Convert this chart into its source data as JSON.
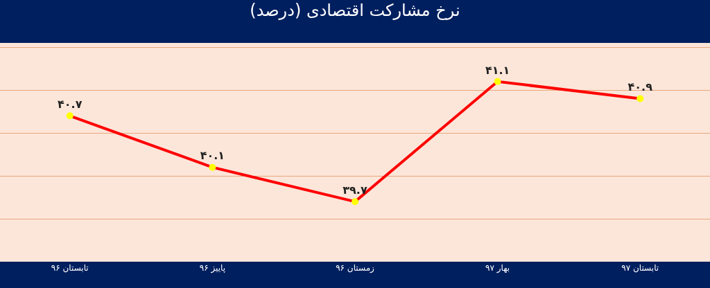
{
  "chart_data": {
    "type": "line",
    "title": "نرخ مشارکت اقتصادی (درصد)",
    "categories": [
      "تابستان ۹۶",
      "پاییز ۹۶",
      "زمستان ۹۶",
      "بهار ۹۷",
      "تابستان ۹۷"
    ],
    "series": [
      {
        "color": "#ff0000",
        "values": [
          40.7,
          40.1,
          39.7,
          41.1,
          40.9
        ],
        "value_labels": [
          "۴۰.۷",
          "۴۰.۱",
          "۳۹.۷",
          "۴۱.۱",
          "۴۰.۹"
        ]
      }
    ],
    "ylim": [
      39.0,
      41.55
    ],
    "yticks": [
      {
        "value": 39.5,
        "label": null
      },
      {
        "value": 40.0,
        "label": null
      },
      {
        "value": 40.5,
        "label": null
      },
      {
        "value": 41.0,
        "label": null
      },
      {
        "value": 41.5,
        "label": null
      }
    ],
    "tick_labels": "x",
    "grid": "y",
    "marker": "circle",
    "line_style": "solid",
    "legend": false
  }
}
